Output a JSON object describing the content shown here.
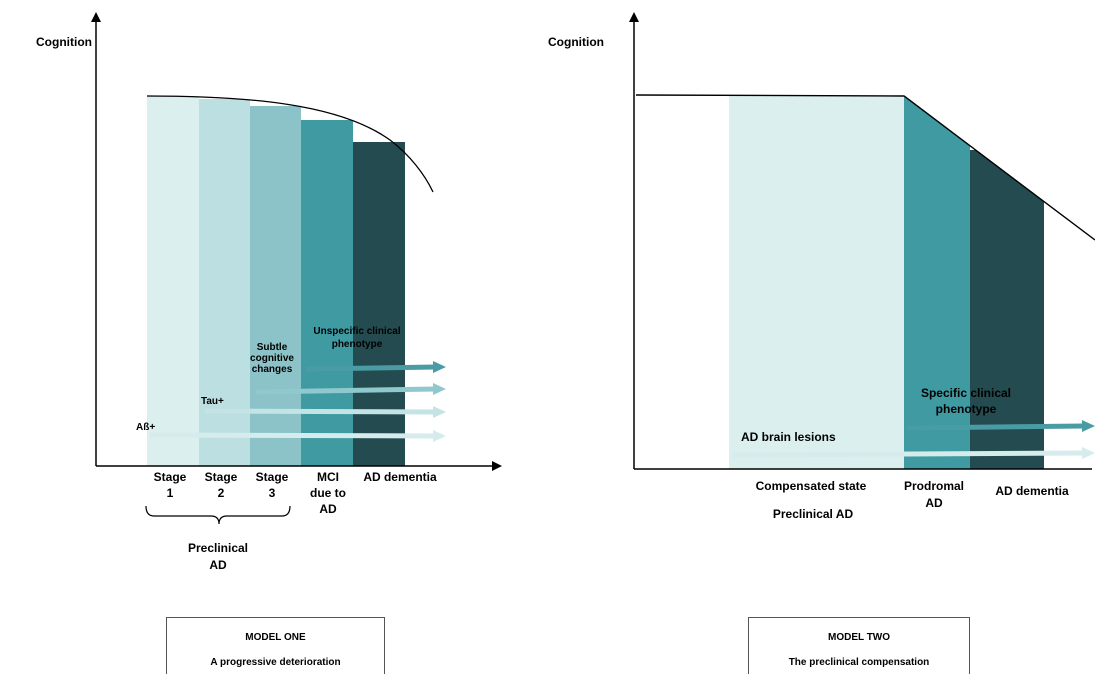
{
  "model_one": {
    "y_axis_label": "Cognition",
    "stages": [
      "Stage\n1",
      "Stage\n2",
      "Stage\n3",
      "MCI\ndue to\nAD",
      "AD dementia"
    ],
    "stage_colors": [
      "#dcefef",
      "#bcdfe2",
      "#8cc3c9",
      "#3f9aa2",
      "#234b50"
    ],
    "brace_label": "Preclinical\nAD",
    "arrows": [
      {
        "label": "Aß+"
      },
      {
        "label": "Tau+"
      },
      {
        "label": "Subtle\ncognitive\nchanges"
      },
      {
        "label": "Unspecific clinical\nphenotype"
      }
    ],
    "box": {
      "title": "MODEL ONE",
      "subtitle": "A progressive deterioration"
    }
  },
  "model_two": {
    "y_axis_label": "Cognition",
    "stages": [
      "Compensated state",
      "Prodromal\nAD",
      "AD dementia"
    ],
    "stage_colors": [
      "#dcefef",
      "#3f9aa2",
      "#234b50"
    ],
    "preclinical_label": "Preclinical AD",
    "arrows": [
      {
        "label": "AD brain lesions"
      },
      {
        "label": "Specific clinical\nphenotype"
      }
    ],
    "box": {
      "title": "MODEL TWO",
      "subtitle": "The preclinical compensation"
    }
  },
  "arrow_colors": {
    "light": "#d6ecec",
    "mid": "#8fc8cd",
    "dark": "#4a9ca4"
  }
}
